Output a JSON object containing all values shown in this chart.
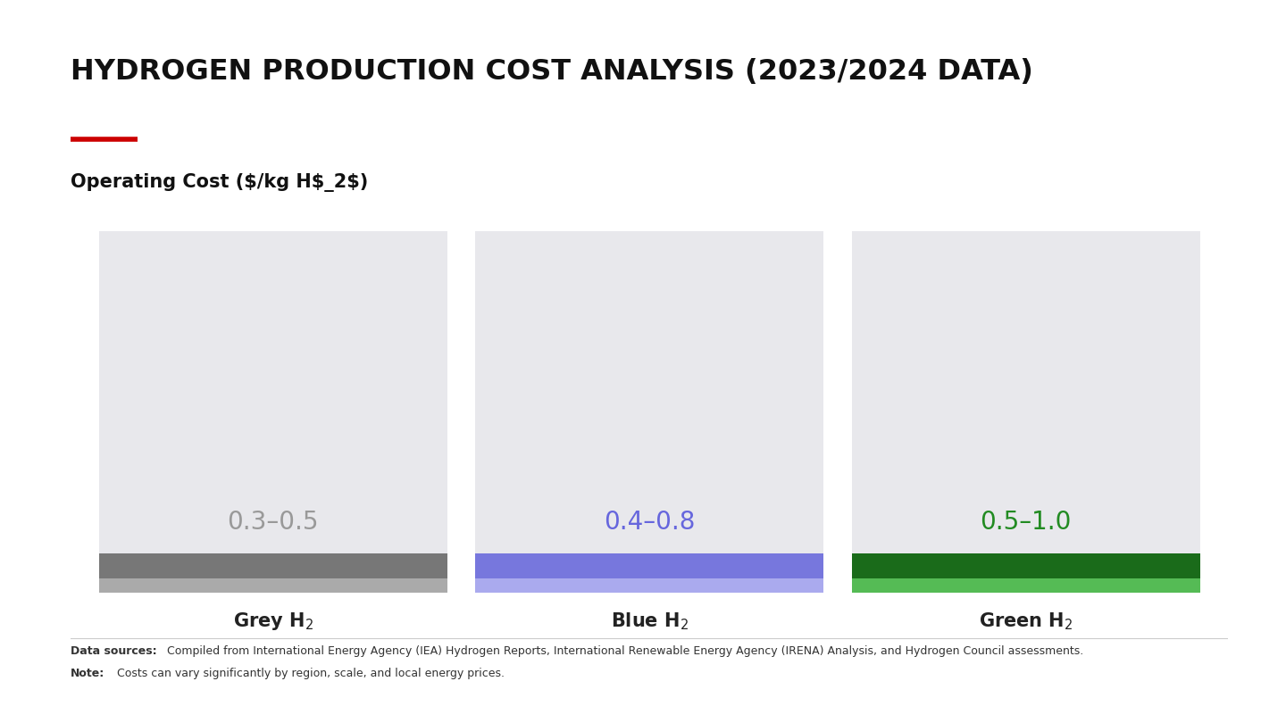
{
  "title": "HYDROGEN PRODUCTION COST ANALYSIS (2023/2024 DATA)",
  "subtitle_line_color": "#cc0000",
  "bar_bg_color": "#e8e8ec",
  "categories": [
    "Grey H$_2$",
    "Blue H$_2$",
    "Green H$_2$"
  ],
  "range_labels": [
    "0.3–0.5",
    "0.4–0.8",
    "0.5–1.0"
  ],
  "range_label_colors": [
    "#999999",
    "#6666dd",
    "#228B22"
  ],
  "bar_top_colors": [
    "#777777",
    "#7777dd",
    "#1a6b1a"
  ],
  "bar_bottom_colors": [
    "#aaaaaa",
    "#aaaaee",
    "#55bb55"
  ],
  "background_color": "#ffffff",
  "footer_sources_bold": "Data sources:",
  "footer_sources": " Compiled from International Energy Agency (IEA) Hydrogen Reports, International Renewable Energy Agency (IRENA) Analysis, and Hydrogen Council assessments.",
  "footer_note_bold": "Note:",
  "footer_note": " Costs can vary significantly by region, scale, and local energy prices.",
  "title_fontsize": 23,
  "subtitle_fontsize": 15,
  "category_fontsize": 15,
  "range_label_fontsize": 20,
  "footer_fontsize": 9
}
